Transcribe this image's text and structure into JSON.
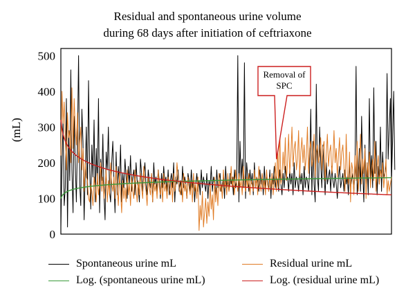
{
  "chart_data": {
    "type": "line",
    "title_line1": "Residual and spontaneous urine volume",
    "title_line2": "during 68 days after initiation of ceftriaxone",
    "ylabel": "(mL)",
    "xlabel": "",
    "ylim": [
      0,
      520
    ],
    "yticks": [
      "0",
      "100",
      "200",
      "300",
      "400",
      "500"
    ],
    "grid": false,
    "legend_position": "bottom",
    "annotation": {
      "text_line1": "Removal of",
      "text_line2": "SPC",
      "target_x": 195,
      "target_y": 210
    },
    "n_points": 300,
    "series": [
      {
        "name": "Spontaneous urine mL",
        "color": "#000000",
        "values": [
          20,
          190,
          320,
          80,
          130,
          380,
          20,
          290,
          150,
          460,
          180,
          60,
          330,
          200,
          90,
          260,
          500,
          140,
          80,
          350,
          260,
          40,
          170,
          300,
          110,
          430,
          190,
          70,
          250,
          160,
          320,
          90,
          240,
          140,
          380,
          60,
          210,
          150,
          280,
          110,
          40,
          230,
          180,
          300,
          120,
          90,
          200,
          260,
          150,
          60,
          230,
          110,
          190,
          140,
          250,
          90,
          170,
          130,
          210,
          160,
          100,
          190,
          140,
          220,
          120,
          160,
          180,
          110,
          200,
          150,
          130,
          90,
          210,
          170,
          120,
          160,
          200,
          140,
          110,
          180,
          150,
          130,
          170,
          90,
          200,
          140,
          160,
          120,
          180,
          150,
          100,
          170,
          130,
          190,
          140,
          160,
          120,
          180,
          110,
          150,
          170,
          130,
          200,
          90,
          160,
          140,
          180,
          120,
          150,
          110,
          190,
          130,
          160,
          140,
          100,
          170,
          150,
          120,
          180,
          130,
          160,
          90,
          140,
          170,
          120,
          150,
          110,
          180,
          130,
          160,
          140,
          120,
          170,
          100,
          150,
          130,
          190,
          120,
          160,
          140,
          110,
          180,
          130,
          150,
          170,
          120,
          140,
          160,
          100,
          190,
          130,
          150,
          120,
          170,
          140,
          160,
          110,
          180,
          130,
          150,
          500,
          90,
          260,
          150,
          210,
          130,
          480,
          100,
          200,
          160,
          120,
          180,
          140,
          170,
          110,
          200,
          130,
          160,
          150,
          120,
          180,
          140,
          170,
          110,
          190,
          130,
          160,
          150,
          120,
          180,
          100,
          170,
          140,
          190,
          130,
          160,
          150,
          120,
          180,
          140,
          110,
          170,
          130,
          190,
          150,
          160,
          120,
          180,
          140,
          170,
          110,
          200,
          130,
          160,
          150,
          120,
          180,
          140,
          170,
          110,
          190,
          130,
          160,
          150,
          120,
          180,
          350,
          110,
          260,
          140,
          90,
          420,
          160,
          120,
          300,
          200,
          130,
          250,
          170,
          110,
          200,
          140,
          160,
          180,
          120,
          190,
          150,
          130,
          170,
          140,
          100,
          160,
          190,
          130,
          150,
          170,
          120,
          180,
          140,
          160,
          110,
          200,
          130,
          150,
          170,
          120,
          180,
          470,
          110,
          160,
          240,
          120,
          330,
          180,
          90,
          250,
          140,
          200,
          110,
          380,
          150,
          220,
          130,
          410,
          170,
          260,
          110,
          190,
          140,
          300,
          120,
          230,
          160,
          170,
          190,
          450,
          210,
          300,
          380,
          150,
          260,
          400,
          180
        ]
      },
      {
        "name": "Residual urine mL",
        "color": "#e07b24",
        "values": [
          220,
          400,
          310,
          370,
          260,
          180,
          340,
          270,
          290,
          200,
          410,
          240,
          380,
          300,
          250,
          340,
          200,
          260,
          300,
          180,
          240,
          120,
          200,
          160,
          150,
          100,
          90,
          140,
          120,
          80,
          160,
          130,
          90,
          170,
          110,
          140,
          200,
          120,
          160,
          100,
          130,
          180,
          90,
          150,
          110,
          200,
          140,
          120,
          160,
          100,
          190,
          130,
          80,
          170,
          120,
          60,
          150,
          100,
          130,
          90,
          180,
          110,
          140,
          80,
          160,
          120,
          100,
          180,
          130,
          90,
          150,
          110,
          170,
          130,
          100,
          190,
          140,
          120,
          80,
          160,
          130,
          110,
          170,
          90,
          150,
          120,
          140,
          100,
          180,
          130,
          110,
          150,
          90,
          170,
          120,
          140,
          100,
          160,
          130,
          110,
          150,
          90,
          170,
          120,
          140,
          200,
          160,
          130,
          110,
          150,
          90,
          170,
          120,
          140,
          100,
          160,
          130,
          110,
          150,
          90,
          170,
          120,
          140,
          100,
          160,
          10,
          80,
          40,
          120,
          20,
          60,
          100,
          30,
          90,
          50,
          140,
          70,
          110,
          40,
          160,
          90,
          130,
          80,
          170,
          120,
          140,
          100,
          180,
          130,
          150,
          110,
          170,
          120,
          140,
          190,
          130,
          160,
          110,
          180,
          140,
          120,
          170,
          130,
          150,
          110,
          190,
          140,
          120,
          160,
          130,
          170,
          110,
          150,
          140,
          120,
          180,
          130,
          160,
          110,
          190,
          140,
          120,
          170,
          130,
          150,
          110,
          180,
          140,
          120,
          160,
          130,
          170,
          110,
          150,
          200,
          120,
          250,
          130,
          300,
          140,
          160,
          230,
          180,
          270,
          150,
          200,
          280,
          170,
          220,
          300,
          190,
          240,
          260,
          180,
          210,
          290,
          160,
          230,
          270,
          200,
          250,
          180,
          220,
          300,
          170,
          240,
          260,
          190,
          210,
          280,
          160,
          230,
          250,
          200,
          220,
          270,
          180,
          240,
          260,
          150,
          220,
          280,
          190,
          230,
          250,
          170,
          210,
          290,
          200,
          240,
          160,
          220,
          270,
          180,
          230,
          250,
          190,
          120,
          280,
          170,
          140,
          230,
          90,
          200,
          180,
          110,
          220,
          150,
          260,
          120,
          190,
          280,
          140,
          210,
          170,
          240,
          100,
          200,
          160,
          230,
          130,
          180,
          210,
          150,
          260,
          120,
          190,
          220,
          140,
          180,
          160,
          200,
          130,
          170,
          210,
          110,
          150,
          120,
          140,
          160
        ]
      },
      {
        "name": "Log. (spontaneous urine mL)",
        "color": "#3a9a3a",
        "trend": {
          "start": 100,
          "end": 158
        }
      },
      {
        "name": "Log. (residual urine mL)",
        "color": "#cc1f1f",
        "trend": {
          "start": 320,
          "end": 110
        }
      }
    ]
  }
}
